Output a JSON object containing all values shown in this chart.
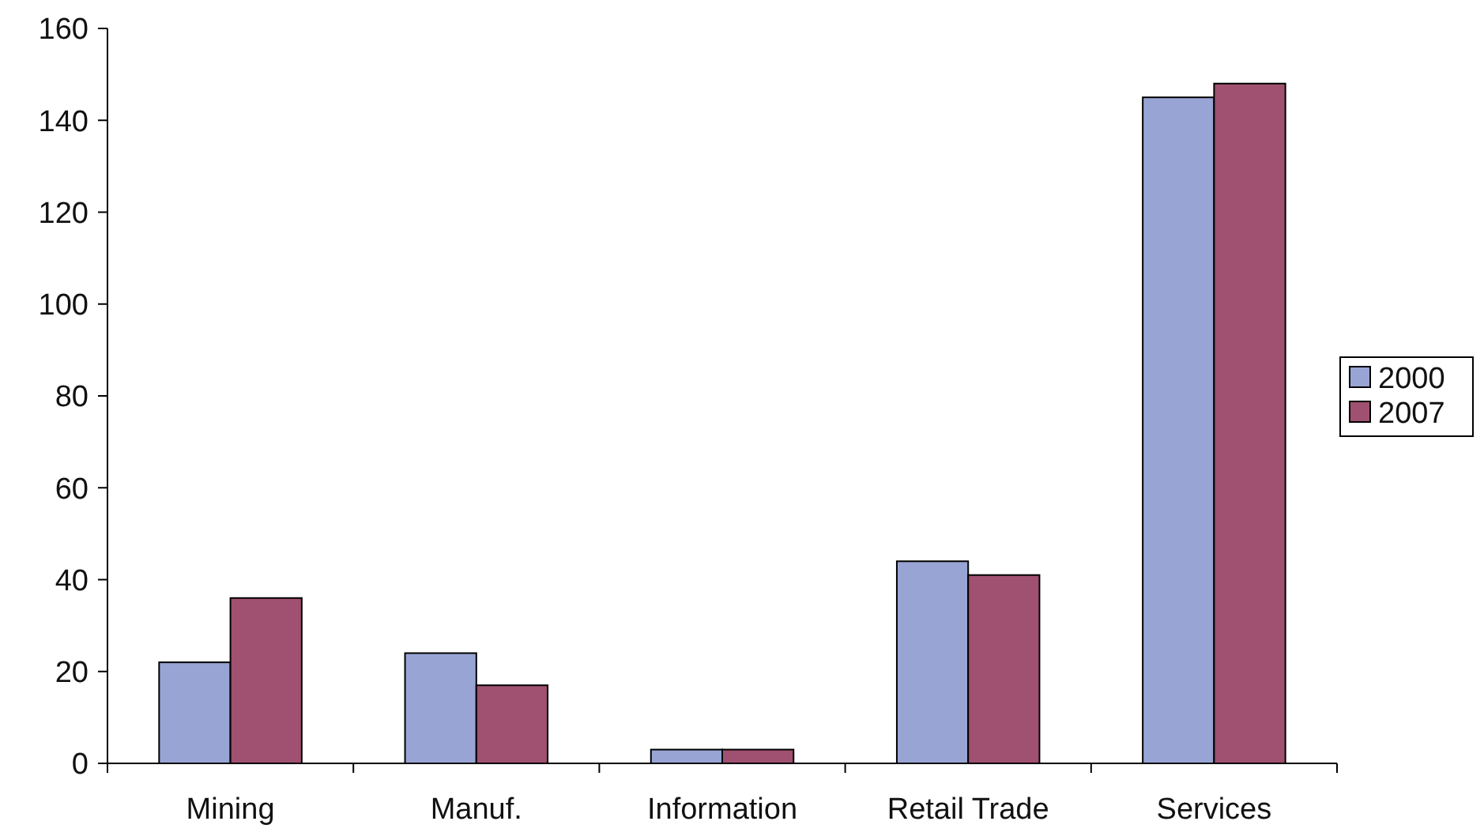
{
  "chart_data": {
    "type": "bar",
    "categories": [
      "Mining",
      "Manuf.",
      "Information",
      "Retail Trade",
      "Services"
    ],
    "series": [
      {
        "name": "2000",
        "color": "#98a4d4",
        "values": [
          22,
          24,
          3,
          44,
          145
        ]
      },
      {
        "name": "2007",
        "color": "#a05070",
        "values": [
          36,
          17,
          3,
          41,
          148
        ]
      }
    ],
    "ylim": [
      0,
      160
    ],
    "yticks": [
      0,
      20,
      40,
      60,
      80,
      100,
      120,
      140,
      160
    ],
    "legend": "right"
  }
}
